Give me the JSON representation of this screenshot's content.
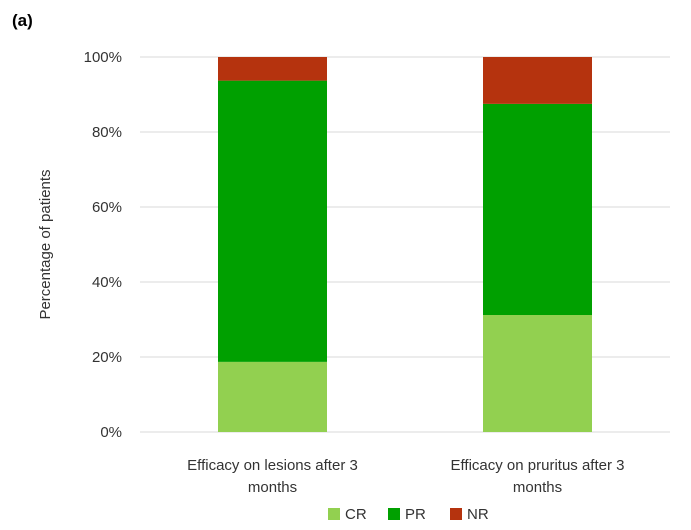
{
  "panel_label": "(a)",
  "chart_data": {
    "type": "bar",
    "stacked": true,
    "categories": [
      [
        "Efficacy on lesions after 3",
        "months"
      ],
      [
        "Efficacy on pruritus after 3",
        "months"
      ]
    ],
    "series": [
      {
        "name": "CR",
        "values": [
          18.7,
          31.2
        ],
        "color": "#92d050"
      },
      {
        "name": "PR",
        "values": [
          75.0,
          56.3
        ],
        "color": "#00a000"
      },
      {
        "name": "NR",
        "values": [
          6.3,
          12.5
        ],
        "color": "#b5330e"
      }
    ],
    "ylabel": "Percentage of patients",
    "ylim": [
      0,
      100
    ],
    "yticks": [
      "0%",
      "20%",
      "40%",
      "60%",
      "80%",
      "100%"
    ],
    "grid": true,
    "legend_position": "bottom"
  }
}
